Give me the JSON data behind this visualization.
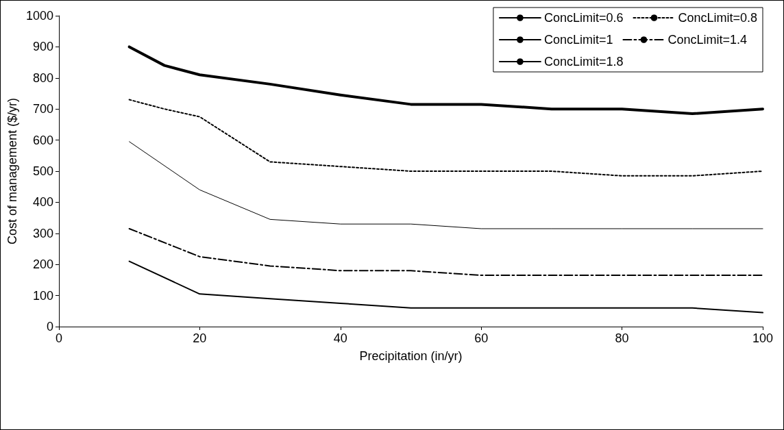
{
  "chart_data": {
    "type": "line",
    "xlabel": "Precipitation (in/yr)",
    "ylabel": "Cost of management ($/yr)",
    "xlim": [
      0,
      100
    ],
    "xticks": [
      0,
      20,
      40,
      60,
      80,
      100
    ],
    "ylim": [
      0,
      1000
    ],
    "yticks": [
      0,
      100,
      200,
      300,
      400,
      500,
      600,
      700,
      800,
      900,
      1000
    ],
    "grid": false,
    "legend": "top right",
    "marker": "none",
    "series": [
      {
        "name": "ConcLimit=0.6",
        "color": "#000000",
        "line_style": "solid",
        "x": [
          10,
          15,
          20,
          30,
          40,
          50,
          60,
          70,
          80,
          90,
          100
        ],
        "values": [
          900,
          840,
          810,
          780,
          745,
          715,
          715,
          700,
          700,
          685,
          700
        ]
      },
      {
        "name": "ConcLimit=0.8",
        "color": "#000000",
        "line_style": "dotted",
        "x": [
          10,
          15,
          20,
          30,
          40,
          50,
          60,
          70,
          80,
          90,
          100
        ],
        "values": [
          730,
          700,
          675,
          530,
          515,
          500,
          500,
          500,
          485,
          485,
          500
        ]
      },
      {
        "name": "ConcLimit=1",
        "color": "#000000",
        "line_style": "solid",
        "x": [
          10,
          20,
          30,
          40,
          50,
          60,
          70,
          80,
          90,
          100
        ],
        "values": [
          595,
          440,
          345,
          330,
          330,
          315,
          315,
          315,
          315,
          315
        ]
      },
      {
        "name": "ConcLimit=1.4",
        "color": "#000000",
        "line_style": "dashdot",
        "x": [
          10,
          20,
          30,
          40,
          50,
          60,
          70,
          80,
          90,
          100
        ],
        "values": [
          315,
          225,
          195,
          180,
          180,
          165,
          165,
          165,
          165,
          165
        ]
      },
      {
        "name": "ConcLimit=1.8",
        "color": "#000000",
        "line_style": "solid",
        "x": [
          10,
          20,
          30,
          40,
          50,
          60,
          70,
          80,
          90,
          100
        ],
        "values": [
          210,
          105,
          90,
          75,
          60,
          60,
          60,
          60,
          60,
          45
        ]
      }
    ]
  }
}
